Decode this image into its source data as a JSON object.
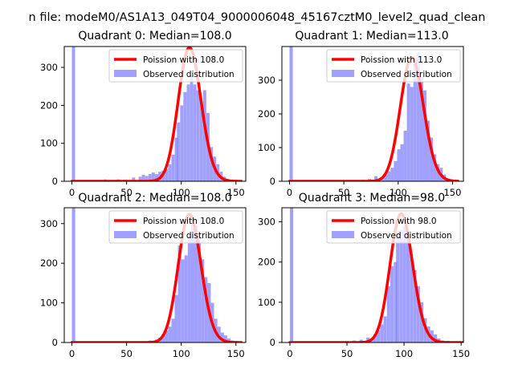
{
  "figure": {
    "suptitle": "n file: modeM0/AS1A13_049T04_9000006048_45167cztM0_level2_quad_clean"
  },
  "chart_data": [
    {
      "type": "bar",
      "title": "Quadrant 0: Median=108.0",
      "xlim": [
        -7,
        159
      ],
      "ylim": [
        0,
        355
      ],
      "xticks": [
        0,
        50,
        100,
        150
      ],
      "yticks": [
        0,
        100,
        200,
        300
      ],
      "poisson_mean": 108.0,
      "poisson_scale": 9180,
      "line_color": "#ff0000",
      "bar_color": "#8080ff",
      "legend": [
        "Poission with 108.0",
        "Observed distribution"
      ],
      "legend_position": "upper right",
      "bin_width": 2.9,
      "bins": [
        0,
        21,
        29,
        35,
        41,
        47,
        55,
        61,
        64,
        67,
        70,
        73,
        76,
        79,
        82,
        85,
        88,
        91,
        94,
        96,
        99,
        102,
        105,
        108,
        111,
        114,
        117,
        120,
        123,
        126,
        129,
        132,
        135,
        138,
        141,
        144,
        147,
        150
      ],
      "values": [
        360,
        3,
        5,
        3,
        5,
        4,
        10,
        12,
        17,
        14,
        19,
        23,
        19,
        25,
        28,
        32,
        45,
        70,
        115,
        155,
        200,
        235,
        255,
        280,
        255,
        240,
        210,
        240,
        180,
        90,
        65,
        45,
        25,
        12,
        6,
        3,
        2,
        1
      ]
    },
    {
      "type": "bar",
      "title": "Quadrant 1: Median=113.0",
      "xlim": [
        -7,
        160
      ],
      "ylim": [
        0,
        400
      ],
      "xticks": [
        0,
        50,
        100,
        150
      ],
      "yticks": [
        0,
        100,
        200,
        300
      ],
      "poisson_mean": 113.0,
      "poisson_scale": 9800,
      "line_color": "#ff0000",
      "bar_color": "#8080ff",
      "legend": [
        "Poission with 113.0",
        "Observed distribution"
      ],
      "legend_position": "upper right",
      "bin_width": 3.0,
      "bins": [
        0,
        60,
        66,
        72,
        78,
        84,
        87,
        90,
        93,
        96,
        99,
        102,
        105,
        108,
        111,
        114,
        117,
        120,
        123,
        126,
        129,
        132,
        135,
        138,
        141,
        144,
        147
      ],
      "values": [
        400,
        3,
        4,
        7,
        15,
        10,
        20,
        30,
        40,
        60,
        95,
        110,
        150,
        290,
        280,
        355,
        380,
        310,
        270,
        180,
        130,
        80,
        50,
        40,
        20,
        7,
        3
      ]
    },
    {
      "type": "bar",
      "title": "Quadrant 2: Median=108.0",
      "xlim": [
        -7,
        159
      ],
      "ylim": [
        0,
        340
      ],
      "xticks": [
        0,
        50,
        100,
        150
      ],
      "yticks": [
        0,
        100,
        200,
        300
      ],
      "poisson_mean": 108.0,
      "poisson_scale": 8430,
      "line_color": "#ff0000",
      "bar_color": "#8080ff",
      "legend": [
        "Poission with 108.0",
        "Observed distribution"
      ],
      "legend_position": "upper right",
      "bin_width": 3.0,
      "bins": [
        0,
        64,
        70,
        76,
        79,
        82,
        85,
        88,
        91,
        94,
        97,
        100,
        103,
        106,
        109,
        112,
        115,
        118,
        121,
        124,
        127,
        130,
        133,
        136,
        139,
        142,
        145,
        148
      ],
      "values": [
        340,
        3,
        5,
        7,
        12,
        20,
        30,
        40,
        60,
        120,
        245,
        210,
        220,
        270,
        300,
        295,
        270,
        210,
        165,
        150,
        100,
        60,
        40,
        25,
        18,
        10,
        5,
        2
      ]
    },
    {
      "type": "bar",
      "title": "Quadrant 3: Median=98.0",
      "xlim": [
        -7,
        152
      ],
      "ylim": [
        0,
        335
      ],
      "xticks": [
        0,
        50,
        100,
        150
      ],
      "yticks": [
        0,
        100,
        200,
        300
      ],
      "poisson_mean": 98.0,
      "poisson_scale": 7950,
      "line_color": "#ff0000",
      "bar_color": "#8080ff",
      "legend": [
        "Poission with 98.0",
        "Observed distribution"
      ],
      "legend_position": "upper right",
      "bin_width": 2.9,
      "bins": [
        0,
        50,
        55,
        61,
        67,
        70,
        73,
        76,
        79,
        82,
        85,
        88,
        91,
        93,
        96,
        99,
        102,
        105,
        108,
        111,
        114,
        117,
        120,
        123,
        126,
        129,
        132
      ],
      "values": [
        335,
        3,
        5,
        7,
        12,
        10,
        20,
        30,
        45,
        65,
        140,
        190,
        200,
        270,
        280,
        290,
        275,
        220,
        180,
        140,
        100,
        60,
        40,
        30,
        20,
        10,
        5
      ]
    }
  ]
}
